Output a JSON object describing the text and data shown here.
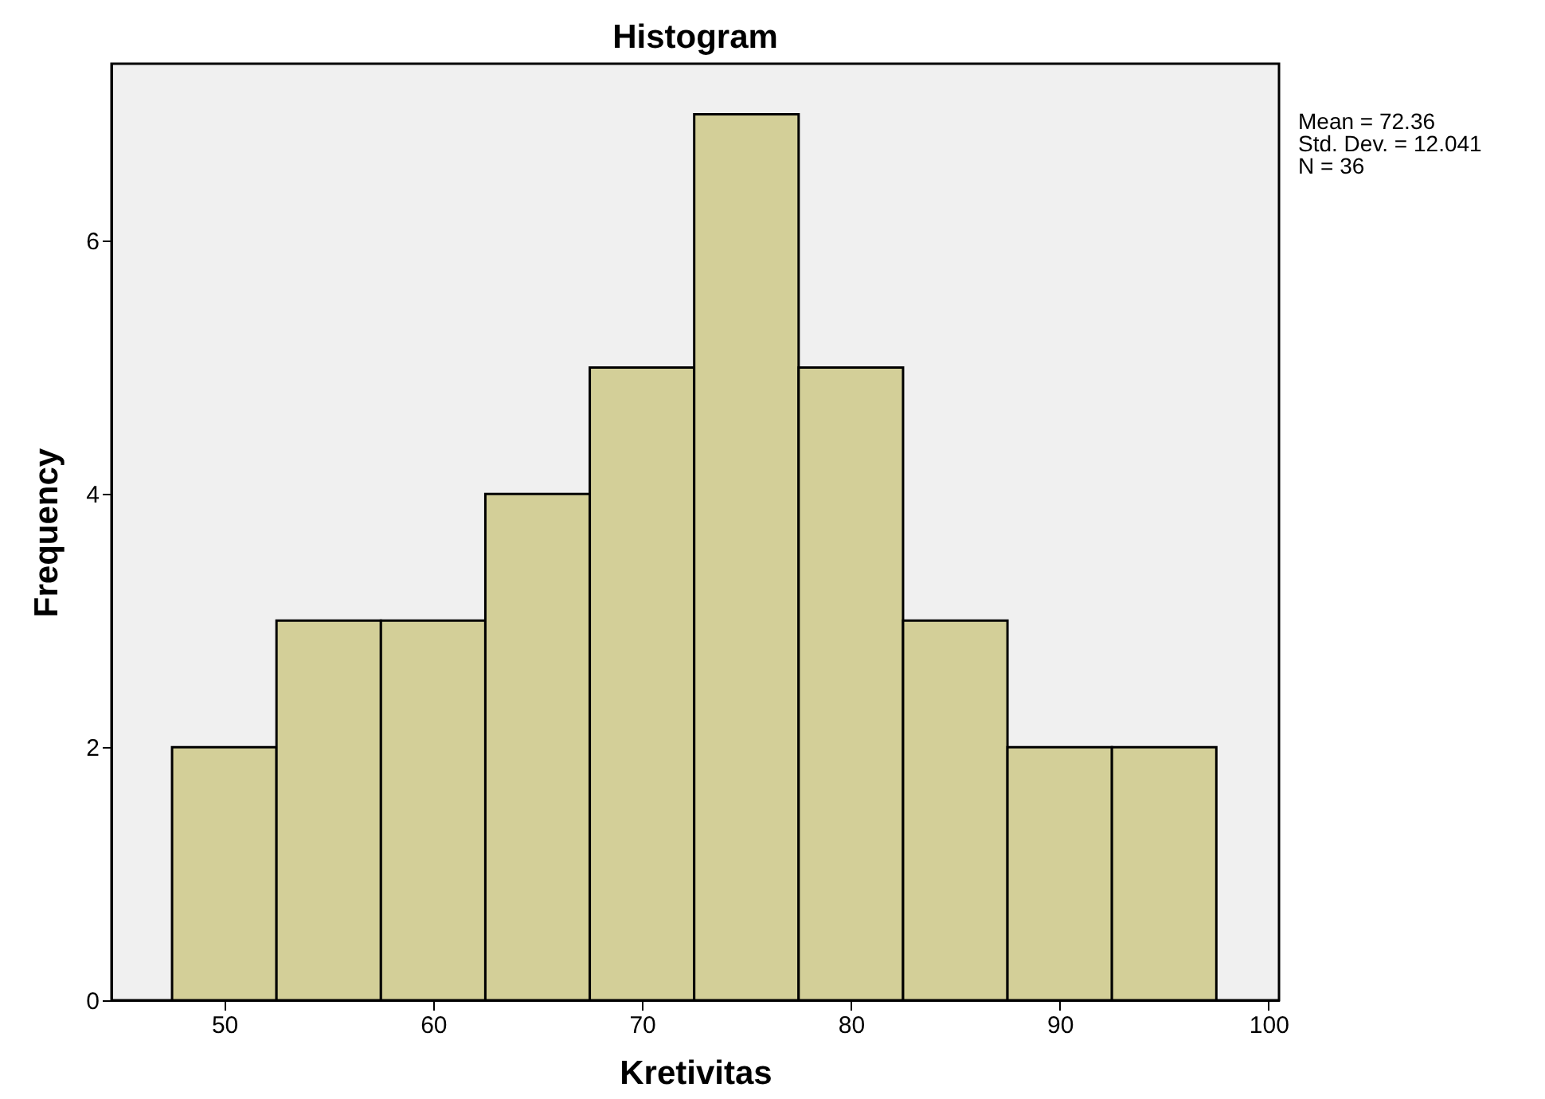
{
  "chart_data": {
    "type": "histogram",
    "title": "Histogram",
    "xlabel": "Kretivitas",
    "ylabel": "Frequency",
    "bins": [
      47.5,
      52.5,
      57.5,
      62.5,
      67.5,
      72.5,
      77.5,
      82.5,
      87.5,
      92.5,
      97.5
    ],
    "values": [
      2,
      3,
      3,
      4,
      5,
      7,
      5,
      3,
      2,
      2
    ],
    "color": "#d3cf98",
    "xlim": [
      44.6,
      100.5
    ],
    "xticks": [
      50,
      60,
      70,
      80,
      90,
      100
    ],
    "ylim": [
      0,
      7.4
    ],
    "yticks": [
      0,
      2,
      4,
      6
    ],
    "annotations": [
      "Mean = 72.36",
      "Std. Dev. = 12.041",
      "N = 36"
    ]
  }
}
